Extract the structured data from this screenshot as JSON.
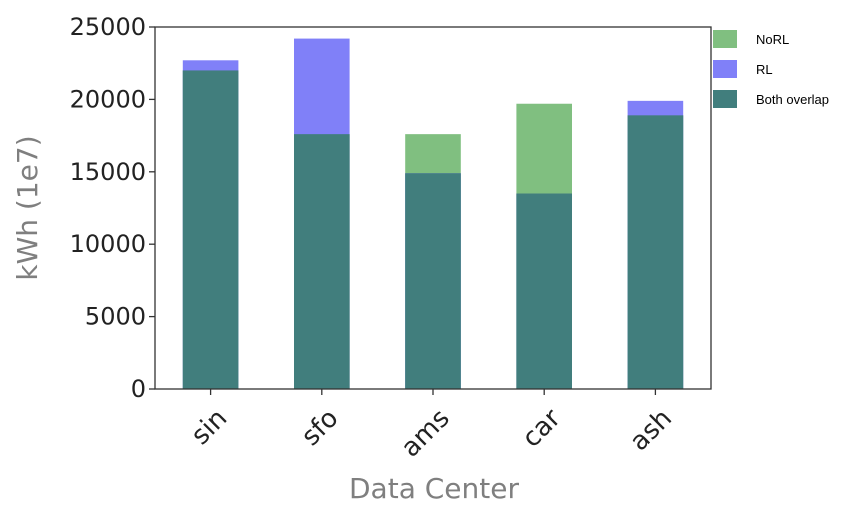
{
  "chart_data": {
    "type": "bar",
    "xlabel": "Data Center",
    "ylabel": "kWh (1e7)",
    "ylim": [
      0,
      25000
    ],
    "yticks": [
      0,
      5000,
      10000,
      15000,
      20000,
      25000
    ],
    "categories": [
      "sin",
      "sfo",
      "ams",
      "car",
      "ash"
    ],
    "series": [
      {
        "name": "NoRL",
        "values": [
          22000,
          17600,
          17600,
          19700,
          18900
        ],
        "color": "#80bf80"
      },
      {
        "name": "RL",
        "values": [
          22700,
          24200,
          14900,
          13500,
          19900
        ],
        "color": "#8080f8"
      },
      {
        "name": "Both overlap",
        "values": [
          22000,
          17600,
          14900,
          13500,
          18900
        ],
        "color": "#417e7d"
      }
    ],
    "legend_position": "top-right",
    "grid": false
  }
}
